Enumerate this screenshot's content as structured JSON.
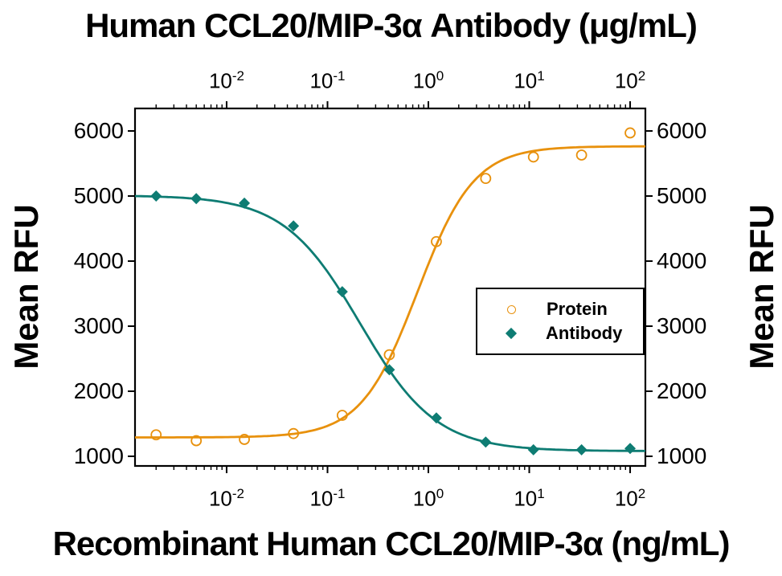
{
  "title": "Human CCL20/MIP-3α Antibody (μg/mL)",
  "x_bottom_label": "Recombinant Human CCL20/MIP-3α (ng/mL)",
  "y_left_label": "Mean RFU",
  "y_right_label": "Mean RFU",
  "legend": {
    "items": [
      {
        "label": "Protein",
        "marker": "open-circle",
        "color": "#E8910D"
      },
      {
        "label": "Antibody",
        "marker": "filled-diamond",
        "color": "#0E7C73"
      }
    ]
  },
  "chart_data": {
    "type": "scatter",
    "x_scale": "log",
    "title_top_axis": "Human CCL20/MIP-3α Antibody (μg/mL)",
    "xlabel_bottom_axis": "Recombinant Human CCL20/MIP-3α (ng/mL)",
    "ylabel": "Mean RFU",
    "x_ticks_exponents": [
      -2,
      -1,
      0,
      1,
      2
    ],
    "y_ticks": [
      1000,
      2000,
      3000,
      4000,
      5000,
      6000
    ],
    "xlim_log": [
      -2.908,
      2.151
    ],
    "ylim": [
      852,
      6346
    ],
    "grid": false,
    "legend_position": "middle-right",
    "x": [
      0.002,
      0.005,
      0.015,
      0.046,
      0.14,
      0.41,
      1.2,
      3.7,
      11,
      33,
      100
    ],
    "series": [
      {
        "name": "Protein",
        "color": "#E8910D",
        "marker": "open-circle",
        "values": [
          1330,
          1240,
          1260,
          1350,
          1630,
          2560,
          4300,
          5270,
          5600,
          5630,
          5970
        ],
        "fit": {
          "type": "4PL",
          "min": 1290,
          "max": 5765,
          "ec50": 0.78,
          "hill": 1.55,
          "direction": "increasing"
        }
      },
      {
        "name": "Antibody",
        "color": "#0E7C73",
        "marker": "filled-diamond",
        "values": [
          5000,
          4960,
          4890,
          4540,
          3530,
          2330,
          1590,
          1220,
          1100,
          1100,
          1120
        ],
        "fit": {
          "type": "4PL",
          "min": 1080,
          "max": 5010,
          "ec50": 0.21,
          "hill": 1.15,
          "direction": "decreasing"
        }
      }
    ]
  }
}
